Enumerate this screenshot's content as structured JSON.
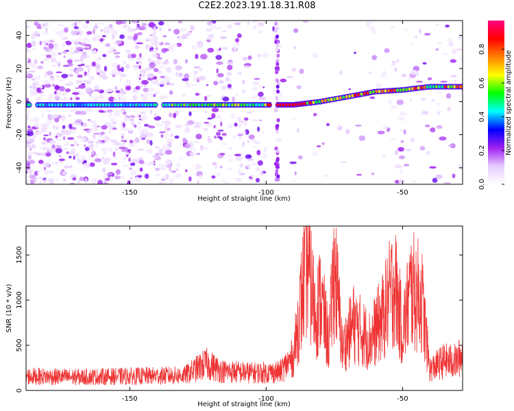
{
  "title": "C2E2.2023.191.18.31.R08",
  "chart_data": [
    {
      "type": "heatmap",
      "xlabel": "Height of straight line (km)",
      "ylabel": "Frequency (Hz)",
      "xlim": [
        -188,
        -28
      ],
      "ylim": [
        -50,
        49
      ],
      "xticks": [
        -150,
        -100,
        -50
      ],
      "yticks": [
        -40,
        -20,
        0,
        20,
        40
      ],
      "colorbar": {
        "label": "Normalized spectral amplitude",
        "range": [
          0,
          0.97
        ],
        "ticks": [
          0.0,
          0.2,
          0.4,
          0.6,
          0.8
        ],
        "colors": [
          "#ffffff",
          "#e6ccff",
          "#a020f0",
          "#0000ff",
          "#00ffff",
          "#00ff00",
          "#ffff00",
          "#ff8000",
          "#ff0000",
          "#ff0080"
        ]
      },
      "ridge": [
        {
          "x": -188,
          "y": -2
        },
        {
          "x": -140,
          "y": -2
        },
        {
          "x": -100,
          "y": -2
        },
        {
          "x": -90,
          "y": -2
        },
        {
          "x": -80,
          "y": 0
        },
        {
          "x": -70,
          "y": 3
        },
        {
          "x": -60,
          "y": 6
        },
        {
          "x": -50,
          "y": 7
        },
        {
          "x": -40,
          "y": 9
        },
        {
          "x": -30,
          "y": 9
        }
      ]
    },
    {
      "type": "line",
      "xlabel": "Height of straight line (km)",
      "ylabel": "SNR (10 * v/v)",
      "xlim": [
        -188,
        -28
      ],
      "ylim": [
        0,
        1820
      ],
      "xticks": [
        -150,
        -100,
        -50
      ],
      "yticks": [
        0,
        500,
        1000,
        1500
      ],
      "color": "#ee3333",
      "envelope": [
        {
          "x": -188,
          "y": 170
        },
        {
          "x": -170,
          "y": 160
        },
        {
          "x": -150,
          "y": 170
        },
        {
          "x": -130,
          "y": 180
        },
        {
          "x": -122,
          "y": 320
        },
        {
          "x": -116,
          "y": 230
        },
        {
          "x": -105,
          "y": 210
        },
        {
          "x": -95,
          "y": 220
        },
        {
          "x": -90,
          "y": 400
        },
        {
          "x": -87,
          "y": 1100
        },
        {
          "x": -85,
          "y": 1600
        },
        {
          "x": -82,
          "y": 900
        },
        {
          "x": -80,
          "y": 1100
        },
        {
          "x": -77,
          "y": 550
        },
        {
          "x": -75,
          "y": 1500
        },
        {
          "x": -72,
          "y": 500
        },
        {
          "x": -68,
          "y": 800
        },
        {
          "x": -62,
          "y": 600
        },
        {
          "x": -57,
          "y": 900
        },
        {
          "x": -53,
          "y": 1300
        },
        {
          "x": -50,
          "y": 700
        },
        {
          "x": -47,
          "y": 1200
        },
        {
          "x": -43,
          "y": 1100
        },
        {
          "x": -40,
          "y": 250
        },
        {
          "x": -35,
          "y": 350
        },
        {
          "x": -30,
          "y": 350
        },
        {
          "x": -28,
          "y": 450
        }
      ]
    }
  ]
}
